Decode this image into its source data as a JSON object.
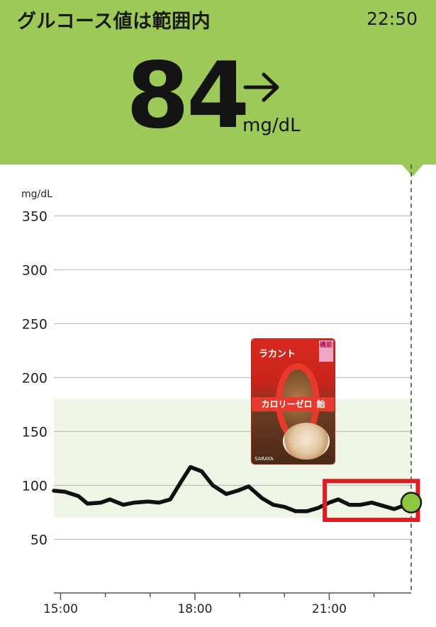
{
  "header": {
    "status_title": "グルコース値は範囲内",
    "clock": "22:50",
    "glucose_value": "84",
    "glucose_unit": "mg/dL",
    "trend_icon": "arrow-right-icon",
    "background_color": "#9cc957"
  },
  "product_image": {
    "brand": "ラカント",
    "badge": "機能",
    "name": "カロリーゼロ",
    "name_suffix": "飴",
    "maker": "SARAYA"
  },
  "chart_data": {
    "type": "line",
    "ylabel": "mg/dL",
    "ylim": [
      0,
      370
    ],
    "yticks": [
      50,
      100,
      150,
      200,
      250,
      300,
      350
    ],
    "xticks": [
      "15:00",
      "18:00",
      "21:00"
    ],
    "xlim_hours": [
      14.85,
      22.83
    ],
    "target_range": [
      70,
      180
    ],
    "target_range_color": "#eef5e4",
    "line_color": "#111111",
    "current_point": {
      "x": 22.83,
      "y": 84,
      "color": "#8dc63f"
    },
    "x": [
      14.85,
      15.1,
      15.4,
      15.6,
      15.9,
      16.1,
      16.4,
      16.65,
      16.95,
      17.2,
      17.45,
      17.7,
      17.9,
      18.15,
      18.4,
      18.7,
      18.95,
      19.2,
      19.5,
      19.75,
      20.0,
      20.25,
      20.5,
      20.75,
      21.0,
      21.2,
      21.45,
      21.7,
      21.95,
      22.2,
      22.45,
      22.65,
      22.83
    ],
    "y": [
      95,
      94,
      90,
      83,
      84,
      87,
      82,
      84,
      85,
      84,
      87,
      104,
      117,
      113,
      100,
      92,
      95,
      99,
      88,
      82,
      80,
      76,
      76,
      79,
      84,
      87,
      82,
      82,
      84,
      81,
      78,
      81,
      84
    ],
    "annotation_box": {
      "x_from": 20.9,
      "x_to": 22.98,
      "y_from": 68,
      "y_to": 104,
      "color": "#e11b22"
    },
    "now_marker_color": "#444444"
  }
}
